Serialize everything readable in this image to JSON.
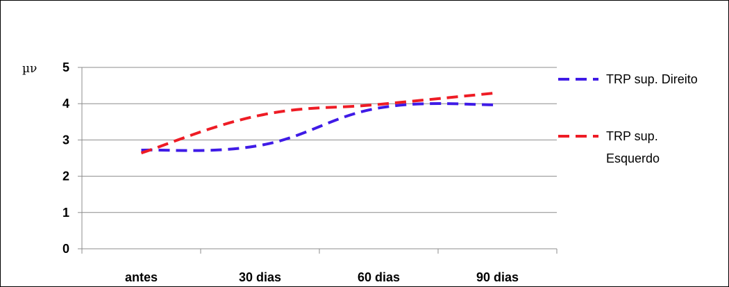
{
  "chart_data": {
    "type": "line",
    "ylabel": "µν",
    "categories": [
      "antes",
      "30 dias",
      "60 dias",
      "90 dias"
    ],
    "ylim": [
      0,
      5
    ],
    "yticks": [
      "0",
      "1",
      "2",
      "3",
      "4",
      "5"
    ],
    "grid": true,
    "legend_position": "right",
    "series": [
      {
        "name": "TRP sup. Direito",
        "color": "#3f1be6",
        "values": [
          2.72,
          2.85,
          3.88,
          3.97
        ],
        "legend_lines": [
          "TRP sup. Direito"
        ]
      },
      {
        "name": "TRP sup. Esquerdo",
        "color": "#ee1c25",
        "values": [
          2.64,
          3.68,
          3.98,
          4.3
        ],
        "legend_lines": [
          "TRP sup.",
          "Esquerdo"
        ]
      }
    ]
  }
}
